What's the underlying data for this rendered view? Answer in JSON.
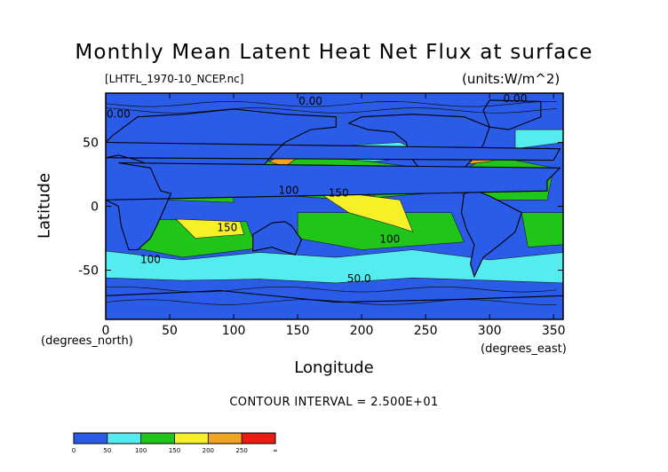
{
  "chart_data": {
    "type": "heatmap",
    "title": "Monthly Mean Latent Heat Net Flux at surface",
    "source_file": "[LHTFL_1970-10_NCEP.nc]",
    "units": "(units:W/m^2)",
    "xlabel": "Longitude",
    "ylabel": "Latitude",
    "x_unit": "(degrees_east)",
    "y_unit": "(degrees_north)",
    "xlim": [
      0,
      357.5
    ],
    "ylim": [
      -88.5,
      88.5
    ],
    "xticks": [
      0,
      50,
      100,
      150,
      200,
      250,
      300,
      350
    ],
    "yticks": [
      -50,
      0,
      50
    ],
    "contour_interval": "CONTOUR INTERVAL = 2.500E+01",
    "contour_labels": [
      {
        "text": "0.00",
        "lon": 10,
        "lat": 72
      },
      {
        "text": "0.00",
        "lon": 160,
        "lat": 82
      },
      {
        "text": "0.00",
        "lon": 320,
        "lat": 84
      },
      {
        "text": "100",
        "lon": 143,
        "lat": 12
      },
      {
        "text": "150",
        "lon": 182,
        "lat": 10
      },
      {
        "text": "150",
        "lon": 95,
        "lat": -17
      },
      {
        "text": "100",
        "lon": 222,
        "lat": -26
      },
      {
        "text": "100",
        "lon": 35,
        "lat": -42
      },
      {
        "text": "50.0",
        "lon": 198,
        "lat": -57
      }
    ],
    "colorbar": {
      "ticks": [
        "0",
        "50",
        "100",
        "150",
        "200",
        "250",
        "∞"
      ],
      "colors": [
        "#2a5ce8",
        "#2a5ce8",
        "#55ecf0",
        "#55ecf0",
        "#21c51a",
        "#21c51a",
        "#f6f028",
        "#f6f028",
        "#f2a320",
        "#f2a320",
        "#ec1b10",
        "#ec1b10"
      ]
    },
    "fill_colors": {
      "low": "#2a5ce8",
      "mid_low": "#55ecf0",
      "mid": "#21c51a",
      "high": "#f6f028",
      "very_high": "#f2a320",
      "max": "#ec1b10"
    },
    "regions": [
      {
        "name": "southern-ocean-band",
        "level": "mid_low",
        "ring": [
          [
            0,
            -35
          ],
          [
            60,
            -42
          ],
          [
            120,
            -36
          ],
          [
            180,
            -40
          ],
          [
            240,
            -34
          ],
          [
            300,
            -42
          ],
          [
            357.5,
            -36
          ],
          [
            357.5,
            -60
          ],
          [
            300,
            -58
          ],
          [
            240,
            -56
          ],
          [
            180,
            -60
          ],
          [
            120,
            -57
          ],
          [
            60,
            -58
          ],
          [
            0,
            -56
          ]
        ]
      },
      {
        "name": "south-indian-subtropical",
        "level": "mid",
        "ring": [
          [
            30,
            -10
          ],
          [
            110,
            -12
          ],
          [
            118,
            -33
          ],
          [
            60,
            -40
          ],
          [
            25,
            -33
          ]
        ]
      },
      {
        "name": "south-pacific-subtropical",
        "level": "mid",
        "ring": [
          [
            150,
            -5
          ],
          [
            270,
            -5
          ],
          [
            280,
            -28
          ],
          [
            200,
            -34
          ],
          [
            150,
            -25
          ]
        ]
      },
      {
        "name": "south-atlantic-subtropical",
        "level": "mid",
        "ring": [
          [
            325,
            -5
          ],
          [
            357.5,
            -5
          ],
          [
            357.5,
            -30
          ],
          [
            330,
            -32
          ]
        ]
      },
      {
        "name": "north-pacific-subtropical",
        "level": "mid",
        "ring": [
          [
            118,
            10
          ],
          [
            190,
            5
          ],
          [
            250,
            10
          ],
          [
            245,
            30
          ],
          [
            170,
            40
          ],
          [
            125,
            35
          ]
        ]
      },
      {
        "name": "north-atlantic-subtropical",
        "level": "mid",
        "ring": [
          [
            280,
            5
          ],
          [
            345,
            5
          ],
          [
            350,
            30
          ],
          [
            300,
            40
          ],
          [
            275,
            25
          ]
        ]
      },
      {
        "name": "arabian-sea",
        "level": "mid",
        "ring": [
          [
            50,
            5
          ],
          [
            100,
            3
          ],
          [
            98,
            22
          ],
          [
            60,
            22
          ]
        ]
      },
      {
        "name": "indian-yellow",
        "level": "high",
        "ring": [
          [
            55,
            -10
          ],
          [
            105,
            -12
          ],
          [
            108,
            -22
          ],
          [
            70,
            -25
          ]
        ]
      },
      {
        "name": "pacific-yellow",
        "level": "high",
        "ring": [
          [
            155,
            25
          ],
          [
            190,
            10
          ],
          [
            230,
            5
          ],
          [
            240,
            -20
          ],
          [
            225,
            -15
          ],
          [
            190,
            -5
          ],
          [
            160,
            15
          ]
        ]
      },
      {
        "name": "atlantic-yellow",
        "level": "high",
        "ring": [
          [
            290,
            22
          ],
          [
            330,
            20
          ],
          [
            340,
            15
          ],
          [
            320,
            12
          ],
          [
            295,
            15
          ]
        ]
      },
      {
        "name": "kuroshio-orange",
        "level": "very_high",
        "ring": [
          [
            128,
            35
          ],
          [
            140,
            31
          ],
          [
            150,
            38
          ],
          [
            140,
            42
          ]
        ]
      },
      {
        "name": "gulf-stream-orange",
        "level": "very_high",
        "ring": [
          [
            282,
            33
          ],
          [
            300,
            35
          ],
          [
            320,
            42
          ],
          [
            300,
            44
          ],
          [
            285,
            40
          ]
        ]
      },
      {
        "name": "gulf-stream-red",
        "level": "max",
        "ring": [
          [
            290,
            36
          ],
          [
            305,
            38
          ],
          [
            315,
            42
          ],
          [
            300,
            43
          ]
        ]
      },
      {
        "name": "subtropical-pacific-orange",
        "level": "very_high",
        "ring": [
          [
            195,
            18
          ],
          [
            205,
            16
          ],
          [
            210,
            8
          ],
          [
            198,
            10
          ]
        ]
      },
      {
        "name": "north-cyan-arc",
        "level": "mid_low",
        "ring": [
          [
            150,
            45
          ],
          [
            230,
            50
          ],
          [
            250,
            40
          ],
          [
            210,
            35
          ],
          [
            170,
            38
          ]
        ]
      },
      {
        "name": "north-atlantic-cyan",
        "level": "mid_low",
        "ring": [
          [
            320,
            45
          ],
          [
            357.5,
            50
          ],
          [
            357.5,
            60
          ],
          [
            320,
            60
          ]
        ]
      }
    ],
    "land": [
      {
        "name": "north-america",
        "ring": [
          [
            190,
            65
          ],
          [
            200,
            70
          ],
          [
            240,
            72
          ],
          [
            280,
            70
          ],
          [
            300,
            62
          ],
          [
            295,
            48
          ],
          [
            290,
            40
          ],
          [
            280,
            30
          ],
          [
            278,
            25
          ],
          [
            263,
            18
          ],
          [
            255,
            20
          ],
          [
            245,
            30
          ],
          [
            237,
            40
          ],
          [
            235,
            50
          ],
          [
            225,
            58
          ],
          [
            205,
            60
          ]
        ]
      },
      {
        "name": "south-america",
        "ring": [
          [
            280,
            10
          ],
          [
            290,
            12
          ],
          [
            300,
            8
          ],
          [
            325,
            -5
          ],
          [
            320,
            -20
          ],
          [
            308,
            -30
          ],
          [
            295,
            -40
          ],
          [
            288,
            -55
          ],
          [
            285,
            -45
          ],
          [
            288,
            -30
          ],
          [
            282,
            -18
          ],
          [
            278,
            -5
          ]
        ]
      },
      {
        "name": "greenland",
        "ring": [
          [
            300,
            62
          ],
          [
            315,
            60
          ],
          [
            340,
            70
          ],
          [
            340,
            82
          ],
          [
            300,
            83
          ],
          [
            295,
            75
          ]
        ]
      },
      {
        "name": "eurasia",
        "ring": [
          [
            350,
            36
          ],
          [
            355,
            45
          ],
          [
            0,
            50
          ],
          [
            5,
            55
          ],
          [
            25,
            70
          ],
          [
            60,
            72
          ],
          [
            100,
            76
          ],
          [
            140,
            72
          ],
          [
            180,
            70
          ],
          [
            180,
            62
          ],
          [
            160,
            60
          ],
          [
            140,
            50
          ],
          [
            130,
            40
          ],
          [
            122,
            30
          ],
          [
            110,
            20
          ],
          [
            105,
            10
          ],
          [
            100,
            15
          ],
          [
            90,
            22
          ],
          [
            80,
            10
          ],
          [
            75,
            20
          ],
          [
            60,
            25
          ],
          [
            50,
            30
          ],
          [
            35,
            32
          ],
          [
            25,
            36
          ],
          [
            10,
            40
          ],
          [
            0,
            38
          ]
        ]
      },
      {
        "name": "africa",
        "ring": [
          [
            345,
            20
          ],
          [
            355,
            30
          ],
          [
            10,
            34
          ],
          [
            35,
            30
          ],
          [
            43,
            12
          ],
          [
            51,
            10
          ],
          [
            40,
            -15
          ],
          [
            35,
            -25
          ],
          [
            25,
            -34
          ],
          [
            18,
            -34
          ],
          [
            12,
            -15
          ],
          [
            10,
            0
          ],
          [
            0,
            5
          ],
          [
            345,
            12
          ]
        ]
      },
      {
        "name": "australia",
        "ring": [
          [
            115,
            -22
          ],
          [
            130,
            -13
          ],
          [
            140,
            -12
          ],
          [
            145,
            -15
          ],
          [
            153,
            -26
          ],
          [
            148,
            -38
          ],
          [
            138,
            -35
          ],
          [
            130,
            -32
          ],
          [
            115,
            -35
          ]
        ]
      },
      {
        "name": "antarctica",
        "ring": [
          [
            0,
            -70
          ],
          [
            90,
            -66
          ],
          [
            180,
            -75
          ],
          [
            270,
            -73
          ],
          [
            357.5,
            -70
          ],
          [
            357.5,
            -88.5
          ],
          [
            0,
            -88.5
          ]
        ]
      }
    ]
  }
}
